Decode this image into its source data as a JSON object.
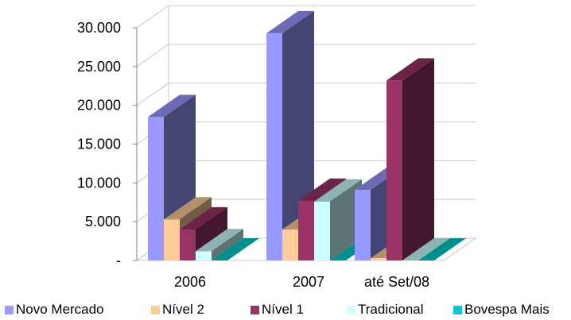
{
  "chart_data": {
    "type": "bar",
    "categories": [
      "2006",
      "2007",
      "até Set/08"
    ],
    "series": [
      {
        "name": "Novo Mercado",
        "values": [
          18500,
          29300,
          9100
        ],
        "color": "#9999ff"
      },
      {
        "name": "Nível 2",
        "values": [
          5300,
          4000,
          300
        ],
        "color": "#ffcc99"
      },
      {
        "name": "Nível 1",
        "values": [
          4000,
          7700,
          23200
        ],
        "color": "#993366"
      },
      {
        "name": "Tradicional",
        "values": [
          1200,
          7600,
          0
        ],
        "color": "#ccffff"
      },
      {
        "name": "Bovespa Mais",
        "values": [
          0,
          0,
          0
        ],
        "color": "#00cccc"
      }
    ],
    "y_ticks": [
      "-",
      "5.000",
      "10.000",
      "15.000",
      "20.000",
      "25.000",
      "30.000"
    ],
    "ylim": [
      0,
      30000
    ],
    "grid": true,
    "legend": "bottom",
    "title": "",
    "xlabel": "",
    "ylabel": ""
  }
}
